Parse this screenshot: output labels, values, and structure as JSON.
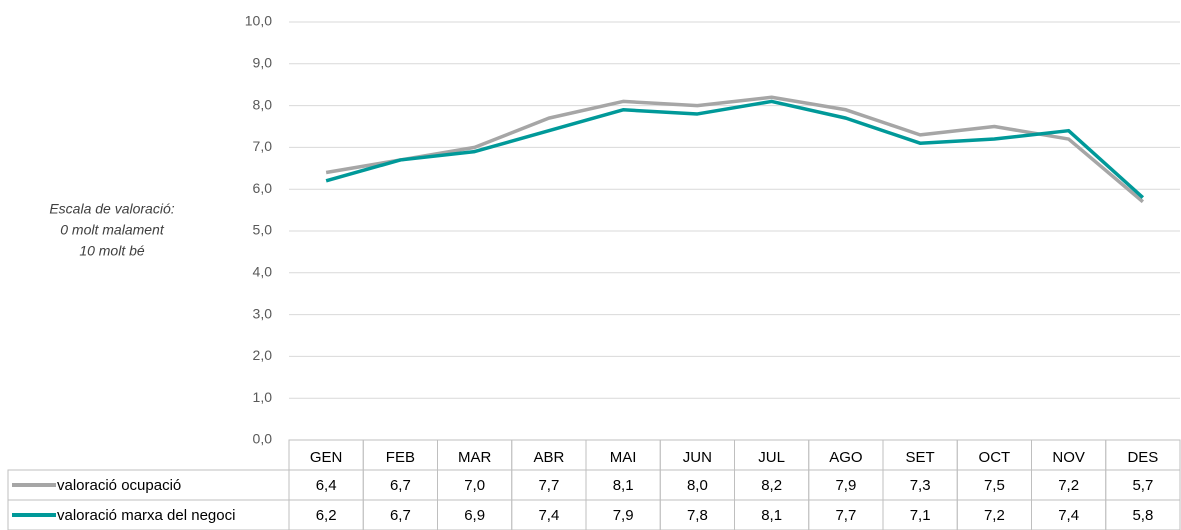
{
  "chart_data": {
    "type": "line",
    "annotation": [
      "Escala de valoració:",
      "0 molt malament",
      "10 molt bé"
    ],
    "categories": [
      "GEN",
      "FEB",
      "MAR",
      "ABR",
      "MAI",
      "JUN",
      "JUL",
      "AGO",
      "SET",
      "OCT",
      "NOV",
      "DES"
    ],
    "series": [
      {
        "name": "valoració ocupació",
        "color": "#a6a6a6",
        "values": [
          6.4,
          6.7,
          7.0,
          7.7,
          8.1,
          8.0,
          8.2,
          7.9,
          7.3,
          7.5,
          7.2,
          5.7
        ],
        "value_labels": [
          "6,4",
          "6,7",
          "7,0",
          "7,7",
          "8,1",
          "8,0",
          "8,2",
          "7,9",
          "7,3",
          "7,5",
          "7,2",
          "5,7"
        ]
      },
      {
        "name": "valoració marxa del negoci",
        "color": "#009999",
        "values": [
          6.2,
          6.7,
          6.9,
          7.4,
          7.9,
          7.8,
          8.1,
          7.7,
          7.1,
          7.2,
          7.4,
          5.8
        ],
        "value_labels": [
          "6,2",
          "6,7",
          "6,9",
          "7,4",
          "7,9",
          "7,8",
          "8,1",
          "7,7",
          "7,1",
          "7,2",
          "7,4",
          "5,8"
        ]
      }
    ],
    "ylim": [
      0,
      10
    ],
    "yticks": [
      {
        "value": 0,
        "label": "0,0"
      },
      {
        "value": 1,
        "label": "1,0"
      },
      {
        "value": 2,
        "label": "2,0"
      },
      {
        "value": 3,
        "label": "3,0"
      },
      {
        "value": 4,
        "label": "4,0"
      },
      {
        "value": 5,
        "label": "5,0"
      },
      {
        "value": 6,
        "label": "6,0"
      },
      {
        "value": 7,
        "label": "7,0"
      },
      {
        "value": 8,
        "label": "8,0"
      },
      {
        "value": 9,
        "label": "9,0"
      },
      {
        "value": 10,
        "label": "10,0"
      }
    ],
    "grid": true
  }
}
